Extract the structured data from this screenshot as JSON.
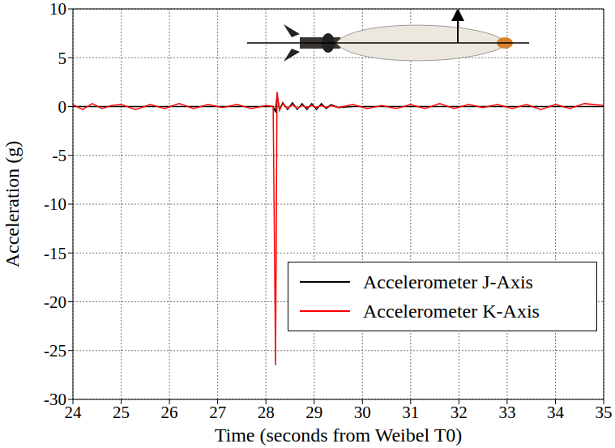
{
  "chart_data": {
    "type": "line",
    "x_label": "Time (seconds from Weibel T0)",
    "y_label": "Acceleration (g)",
    "xlim": [
      24,
      35
    ],
    "xticks": [
      24,
      25,
      26,
      27,
      28,
      29,
      30,
      31,
      32,
      33,
      34,
      35
    ],
    "ylim": [
      -30,
      10
    ],
    "yticks": [
      -30,
      -25,
      -20,
      -15,
      -10,
      -5,
      0,
      5,
      10
    ],
    "grid": true,
    "legend": "lower right",
    "x": [
      24,
      24.2,
      24.4,
      24.6,
      24.8,
      25,
      25.3,
      25.6,
      25.9,
      26.2,
      26.5,
      26.8,
      27.1,
      27.4,
      27.7,
      28.0,
      28.15,
      28.2,
      28.23,
      28.28,
      28.35,
      28.45,
      28.55,
      28.65,
      28.75,
      28.85,
      28.95,
      29.05,
      29.15,
      29.25,
      29.35,
      29.5,
      29.8,
      30.1,
      30.4,
      30.7,
      31.0,
      31.3,
      31.6,
      31.9,
      32.2,
      32.5,
      32.8,
      33.1,
      33.4,
      33.7,
      34.0,
      34.3,
      34.6,
      35
    ],
    "series": [
      {
        "name": "Accelerometer J-Axis",
        "color": "#000000",
        "values": [
          0,
          0,
          0,
          0,
          0,
          0,
          0,
          0,
          0,
          0,
          0,
          0,
          0,
          0,
          0,
          0,
          0,
          -0.6,
          1.2,
          -0.3,
          0.4,
          -0.3,
          0.4,
          -0.3,
          0.3,
          -0.3,
          0.3,
          -0.3,
          0.3,
          -0.2,
          0.2,
          -0.1,
          0,
          0,
          0,
          0,
          0,
          0,
          0,
          0,
          0,
          0,
          0,
          0,
          0,
          0,
          0,
          0,
          0,
          0
        ]
      },
      {
        "name": "Accelerometer K-Axis",
        "color": "#ff0000",
        "values": [
          0.2,
          -0.3,
          0.3,
          -0.2,
          0.1,
          0.2,
          -0.3,
          0.2,
          -0.2,
          0.3,
          -0.2,
          0.2,
          -0.1,
          0.2,
          -0.2,
          0.1,
          0,
          -26.5,
          1.5,
          -0.4,
          0.3,
          -0.2,
          0.2,
          -0.2,
          0.1,
          -0.1,
          0.1,
          -0.1,
          0.1,
          -0.1,
          0.1,
          -0.1,
          0.2,
          -0.2,
          0.1,
          -0.2,
          0.2,
          -0.2,
          0.3,
          -0.2,
          0.2,
          -0.1,
          0.2,
          -0.2,
          0.2,
          -0.3,
          0.2,
          -0.2,
          0.3,
          0.1
        ]
      }
    ]
  }
}
